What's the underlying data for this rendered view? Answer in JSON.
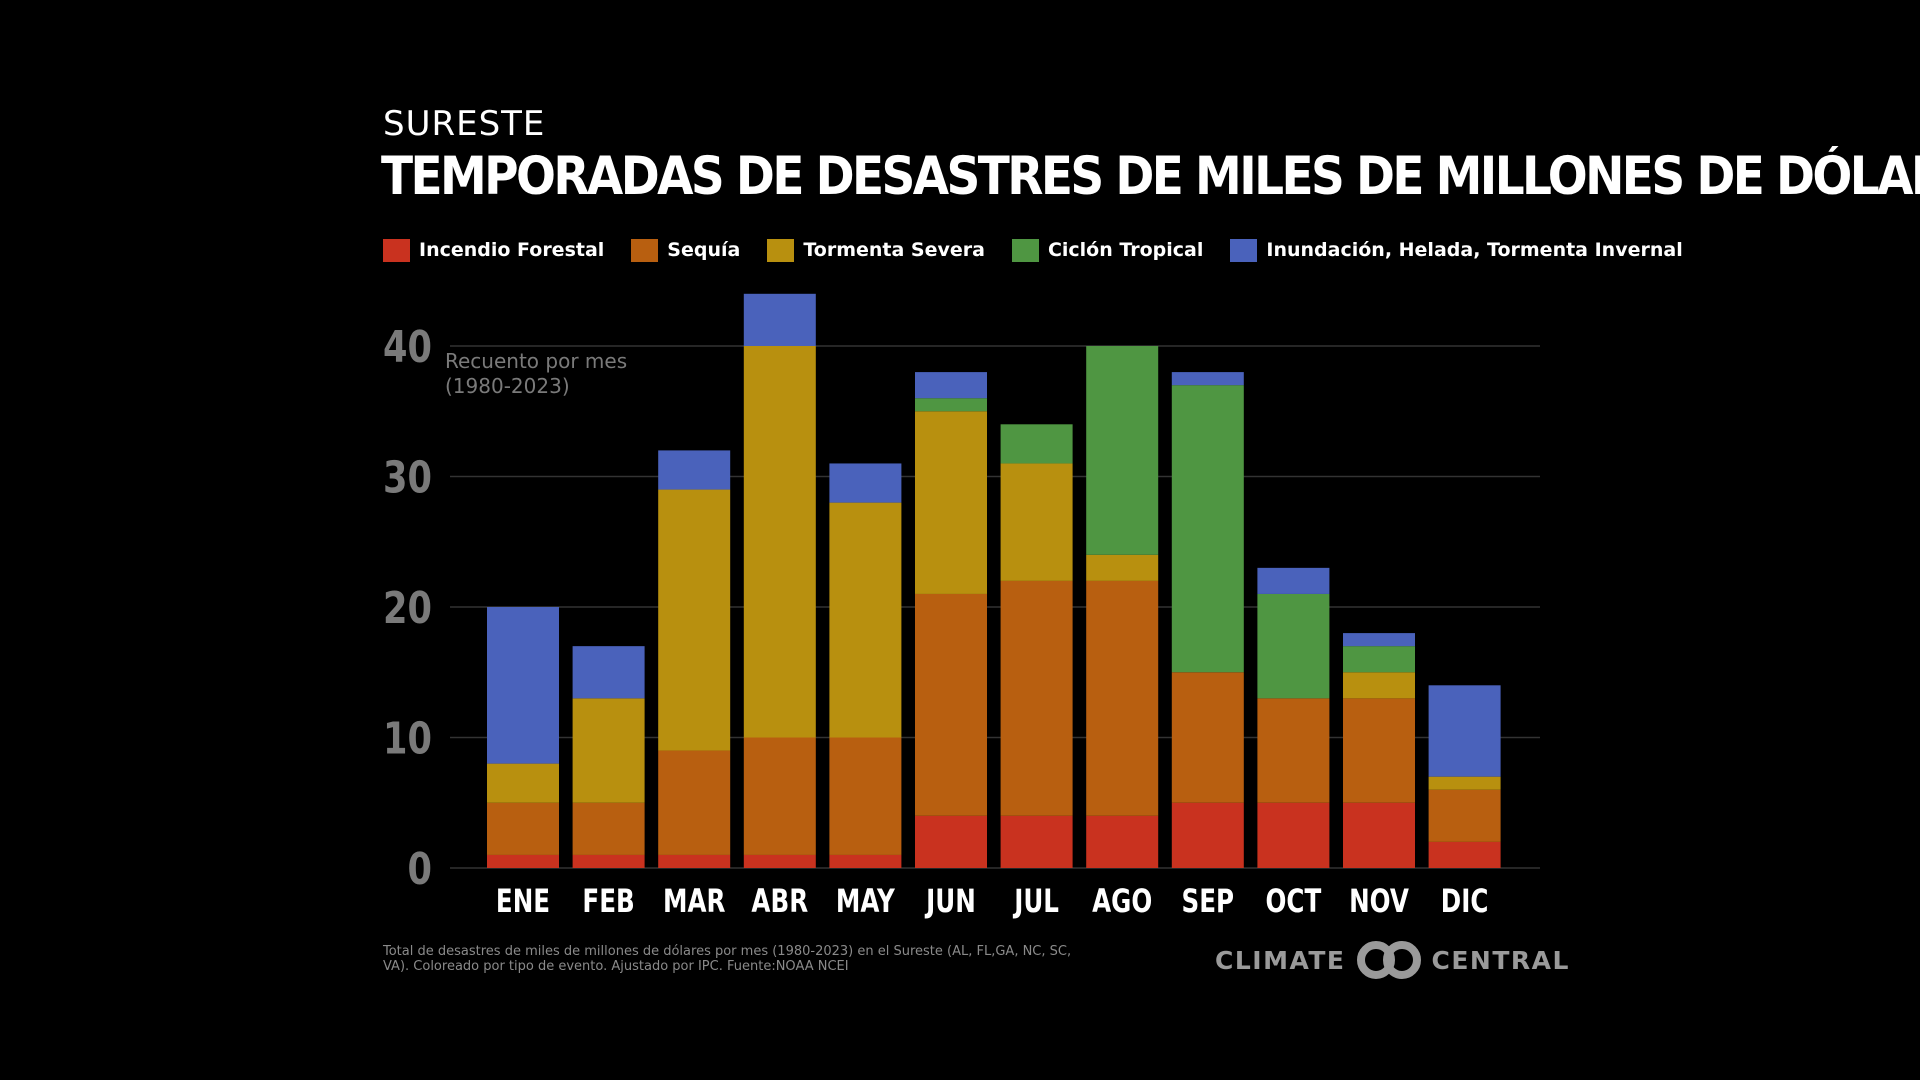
{
  "header": {
    "region": "SURESTE",
    "title": "TEMPORADAS DE DESASTRES DE MILES DE MILLONES DE DÓLARES"
  },
  "colors": {
    "background": "#000000",
    "gridline": "#333333",
    "axis_text": "#7a7a7a",
    "month_text": "#ffffff"
  },
  "footer": {
    "note": "Total de desastres de miles de millones de dólares por mes (1980-2023) en el Sureste (AL, FL,GA, NC, SC, VA). Coloreado por tipo de evento. Ajustado por IPC. Fuente:NOAA NCEI",
    "brand_left": "CLIMATE",
    "brand_right": "CENTRAL",
    "logo_icon": "linked-circles-icon"
  },
  "chart_data": {
    "type": "bar",
    "stacked": true,
    "categories": [
      "ENE",
      "FEB",
      "MAR",
      "ABR",
      "MAY",
      "JUN",
      "JUL",
      "AGO",
      "SEP",
      "OCT",
      "NOV",
      "DIC"
    ],
    "series": [
      {
        "key": "incendio",
        "name": "Incendio Forestal",
        "color": "#c9321f",
        "values": [
          1,
          1,
          1,
          1,
          1,
          4,
          4,
          4,
          5,
          5,
          5,
          2
        ]
      },
      {
        "key": "sequia",
        "name": "Sequía",
        "color": "#b85f10",
        "values": [
          4,
          4,
          8,
          9,
          9,
          17,
          18,
          18,
          10,
          8,
          8,
          4
        ]
      },
      {
        "key": "tormenta",
        "name": "Tormenta Severa",
        "color": "#b8900f",
        "values": [
          3,
          8,
          20,
          30,
          18,
          14,
          9,
          2,
          0,
          0,
          2,
          1
        ]
      },
      {
        "key": "ciclon",
        "name": "Ciclón Tropical",
        "color": "#4f9642",
        "values": [
          0,
          0,
          0,
          0,
          0,
          1,
          3,
          16,
          22,
          8,
          2,
          0
        ]
      },
      {
        "key": "inundacion",
        "name": "Inundación, Helada, Tormenta Invernal",
        "color": "#4a62bb",
        "values": [
          12,
          4,
          3,
          4,
          3,
          2,
          0,
          0,
          1,
          2,
          1,
          7
        ]
      }
    ],
    "ylim": [
      0,
      40
    ],
    "yticks": [
      0,
      10,
      20,
      30,
      40
    ],
    "ylabel": "Recuento por mes",
    "ylabel_sub": "(1980-2023)",
    "xlabel": "",
    "grid": true,
    "legend": "top"
  }
}
